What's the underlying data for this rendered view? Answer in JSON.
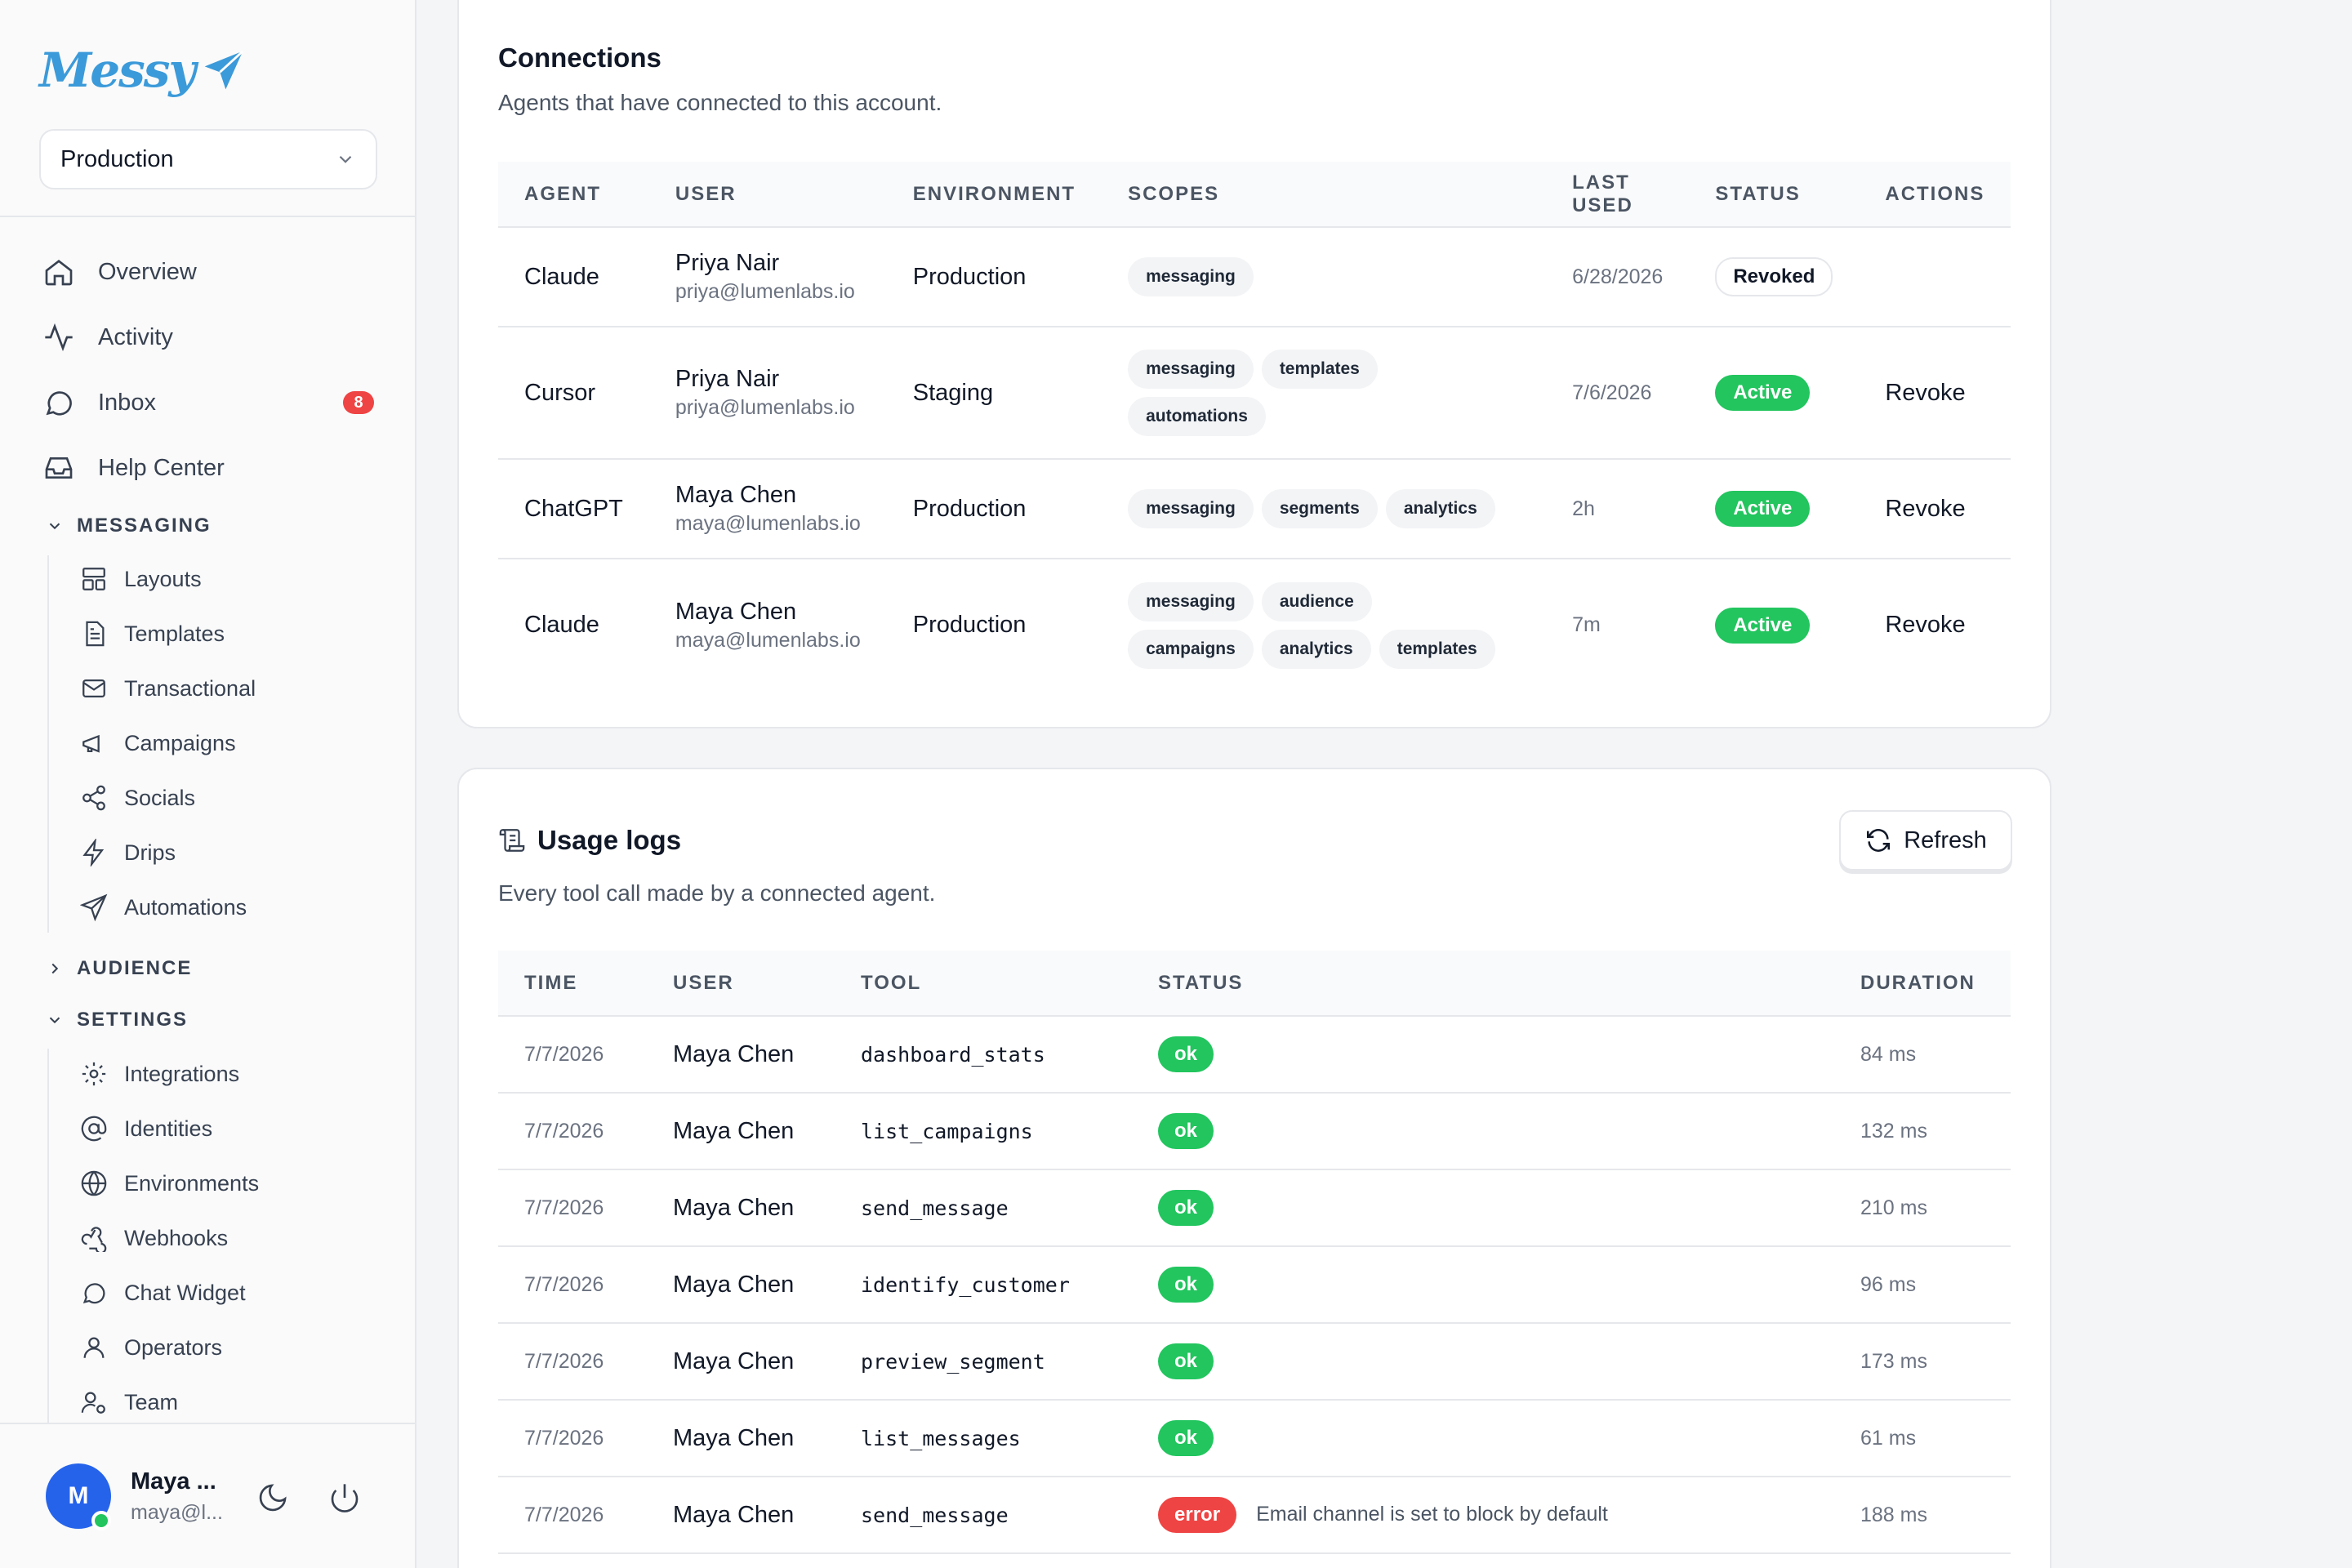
{
  "brand": {
    "name": "Messy",
    "color": "#3b9ad9"
  },
  "environment_select": {
    "value": "Production"
  },
  "nav": {
    "overview": "Overview",
    "activity": "Activity",
    "inbox": "Inbox",
    "inbox_badge": "8",
    "help_center": "Help Center"
  },
  "sections": {
    "messaging": "MESSAGING",
    "audience": "AUDIENCE",
    "settings": "SETTINGS"
  },
  "messaging_items": [
    "Layouts",
    "Templates",
    "Transactional",
    "Campaigns",
    "Socials",
    "Drips",
    "Automations"
  ],
  "settings_items": [
    "Integrations",
    "Identities",
    "Environments",
    "Webhooks",
    "Chat Widget",
    "Operators",
    "Team"
  ],
  "user": {
    "initial": "M",
    "name": "Maya ...",
    "email": "maya@l..."
  },
  "connections": {
    "title": "Connections",
    "description": "Agents that have connected to this account.",
    "headers": {
      "agent": "AGENT",
      "user": "USER",
      "environment": "ENVIRONMENT",
      "scopes": "SCOPES",
      "last_used": "LAST USED",
      "status": "STATUS",
      "actions": "ACTIONS"
    },
    "rows": [
      {
        "agent": "Claude",
        "user": "Priya Nair",
        "email": "priya@lumenlabs.io",
        "environment": "Production",
        "scopes": [
          "messaging"
        ],
        "last_used": "6/28/2026",
        "status": "Revoked",
        "action": ""
      },
      {
        "agent": "Cursor",
        "user": "Priya Nair",
        "email": "priya@lumenlabs.io",
        "environment": "Staging",
        "scopes": [
          "messaging",
          "templates",
          "automations"
        ],
        "last_used": "7/6/2026",
        "status": "Active",
        "action": "Revoke"
      },
      {
        "agent": "ChatGPT",
        "user": "Maya Chen",
        "email": "maya@lumenlabs.io",
        "environment": "Production",
        "scopes": [
          "messaging",
          "segments",
          "analytics"
        ],
        "last_used": "2h",
        "status": "Active",
        "action": "Revoke"
      },
      {
        "agent": "Claude",
        "user": "Maya Chen",
        "email": "maya@lumenlabs.io",
        "environment": "Production",
        "scopes": [
          "messaging",
          "audience",
          "campaigns",
          "analytics",
          "templates"
        ],
        "last_used": "7m",
        "status": "Active",
        "action": "Revoke"
      }
    ]
  },
  "usage_logs": {
    "title": "Usage logs",
    "description": "Every tool call made by a connected agent.",
    "refresh_label": "Refresh",
    "headers": {
      "time": "TIME",
      "user": "USER",
      "tool": "TOOL",
      "status": "STATUS",
      "duration": "DURATION"
    },
    "rows": [
      {
        "time": "7/7/2026",
        "user": "Maya Chen",
        "tool": "dashboard_stats",
        "status": "ok",
        "message": "",
        "duration": "84 ms"
      },
      {
        "time": "7/7/2026",
        "user": "Maya Chen",
        "tool": "list_campaigns",
        "status": "ok",
        "message": "",
        "duration": "132 ms"
      },
      {
        "time": "7/7/2026",
        "user": "Maya Chen",
        "tool": "send_message",
        "status": "ok",
        "message": "",
        "duration": "210 ms"
      },
      {
        "time": "7/7/2026",
        "user": "Maya Chen",
        "tool": "identify_customer",
        "status": "ok",
        "message": "",
        "duration": "96 ms"
      },
      {
        "time": "7/7/2026",
        "user": "Maya Chen",
        "tool": "preview_segment",
        "status": "ok",
        "message": "",
        "duration": "173 ms"
      },
      {
        "time": "7/7/2026",
        "user": "Maya Chen",
        "tool": "list_messages",
        "status": "ok",
        "message": "",
        "duration": "61 ms"
      },
      {
        "time": "7/7/2026",
        "user": "Maya Chen",
        "tool": "send_message",
        "status": "error",
        "message": "Email channel is set to block by default",
        "duration": "188 ms"
      }
    ]
  },
  "colors": {
    "success": "#22c55e",
    "danger": "#ef4444",
    "accent": "#2563eb"
  }
}
